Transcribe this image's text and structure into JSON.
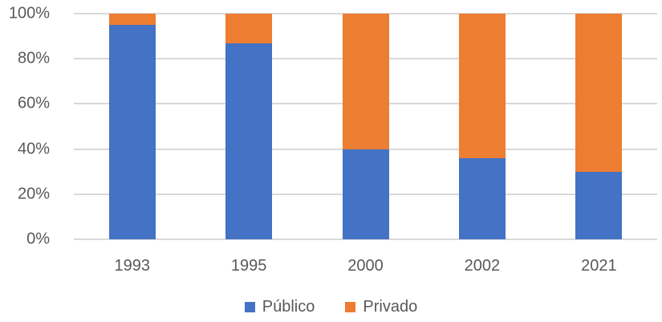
{
  "chart_data": {
    "type": "bar",
    "variant": "stacked-100-percent",
    "title": "",
    "xlabel": "",
    "ylabel": "",
    "categories": [
      "1993",
      "1995",
      "2000",
      "2002",
      "2021"
    ],
    "series": [
      {
        "name": "Público",
        "color": "#4472C4",
        "values": [
          95,
          87,
          40,
          36,
          30
        ]
      },
      {
        "name": "Privado",
        "color": "#ED7D31",
        "values": [
          5,
          13,
          60,
          64,
          70
        ]
      }
    ],
    "y_ticks": [
      "0%",
      "20%",
      "40%",
      "60%",
      "80%",
      "100%"
    ],
    "ylim": [
      0,
      100
    ],
    "grid": true,
    "gridline_color": "#D9D9D9",
    "axis_text_color": "#595959",
    "background_color": "#FFFFFF",
    "legend_position": "bottom"
  }
}
